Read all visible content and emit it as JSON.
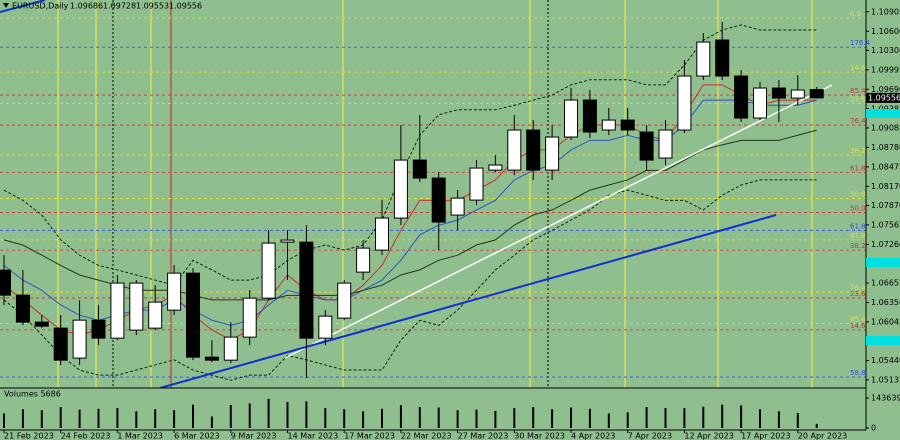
{
  "chart_data": {
    "type": "candlestick",
    "title": "EURUSD,Daily",
    "categories": [
      "21 Feb 2023",
      null,
      null,
      "24 Feb 2023",
      null,
      null,
      "1 Mar 2023",
      null,
      null,
      "6 Mar 2023",
      null,
      null,
      "9 Mar 2023",
      null,
      null,
      "14 Mar 2023",
      null,
      null,
      "17 Mar 2023",
      null,
      null,
      "22 Mar 2023",
      null,
      null,
      "27 Mar 2023",
      null,
      null,
      "30 Mar 2023",
      null,
      null,
      "4 Apr 2023",
      null,
      null,
      "7 Apr 2023",
      null,
      null,
      "12 Apr 2023",
      null,
      null,
      "17 Apr 2023",
      null,
      null,
      "20 Apr 2023",
      null
    ],
    "open": [
      1.06856,
      1.06464,
      1.06041,
      1.05947,
      1.05477,
      1.06072,
      1.0579,
      1.05916,
      1.05947,
      1.06229,
      1.06809,
      1.05492,
      1.05445,
      1.05806,
      1.06417,
      1.07295,
      1.07295,
      1.0579,
      1.06104,
      1.06825,
      1.0717,
      1.07672,
      1.08581,
      1.08299,
      1.07719,
      1.07954,
      1.08424,
      1.08424,
      1.09052,
      1.08424,
      1.08942,
      1.09522,
      1.09052,
      1.09208,
      1.0902,
      1.08613,
      1.09052,
      1.09898,
      1.10463,
      1.09898,
      1.0924,
      1.0971,
      1.09553,
      1.09686
    ],
    "high": [
      1.07092,
      1.06856,
      1.06151,
      1.06151,
      1.06386,
      1.06308,
      1.06778,
      1.067,
      1.06621,
      1.06935,
      1.06888,
      1.05759,
      1.06041,
      1.06543,
      1.07484,
      1.07484,
      1.07562,
      1.06229,
      1.067,
      1.07327,
      1.07954,
      1.0913,
      1.09287,
      1.08393,
      1.08111,
      1.08581,
      1.0866,
      1.09287,
      1.09208,
      1.0913,
      1.0971,
      1.09679,
      1.09397,
      1.09397,
      1.0913,
      1.09208,
      1.10149,
      1.10573,
      1.10745,
      1.09992,
      1.09804,
      1.09836,
      1.09914,
      1.09728
    ],
    "low": [
      1.06308,
      1.05994,
      1.05947,
      1.05367,
      1.05367,
      1.0568,
      1.05759,
      1.05837,
      1.05916,
      1.06151,
      1.05445,
      1.05414,
      1.05398,
      1.0568,
      1.06386,
      1.067,
      1.05163,
      1.0568,
      1.06072,
      1.067,
      1.07092,
      1.07562,
      1.08236,
      1.0717,
      1.07484,
      1.07876,
      1.08393,
      1.08346,
      1.08268,
      1.08268,
      1.08895,
      1.08926,
      1.08973,
      1.08973,
      1.08424,
      1.08503,
      1.09005,
      1.09836,
      1.09836,
      1.09177,
      1.09208,
      1.09177,
      1.09444,
      1.09553
    ],
    "close": [
      1.06464,
      1.06041,
      1.05978,
      1.05445,
      1.06072,
      1.0579,
      1.06653,
      1.06653,
      1.06355,
      1.06809,
      1.05492,
      1.05445,
      1.05806,
      1.06417,
      1.0728,
      1.07327,
      1.0579,
      1.06135,
      1.06653,
      1.07201,
      1.07672,
      1.08581,
      1.08299,
      1.07609,
      1.07985,
      1.08456,
      1.08503,
      1.09052,
      1.08424,
      1.08942,
      1.09522,
      1.0902,
      1.09208,
      1.09052,
      1.08581,
      1.09052,
      1.09898,
      1.10431,
      1.09898,
      1.0924,
      1.0971,
      1.09553,
      1.09679,
      1.09556
    ],
    "up_color": "#ffffff",
    "down_color": "#000000",
    "ylim": [
      1.0504,
      1.1109
    ],
    "yticks": [
      1.10905,
      {
        "value": 1.106,
        "label": "1.10600"
      },
      {
        "value": 1.103,
        "label": "1.10300"
      },
      1.09995,
      {
        "value": 1.0969,
        "label": "1.09690"
      },
      1.09385,
      1.09085,
      {
        "value": 1.0878,
        "label": "1.08780"
      },
      1.08475,
      {
        "value": 1.0817,
        "label": "1.08170"
      },
      {
        "value": 1.0787,
        "label": "1.07870"
      },
      1.07565,
      {
        "value": 1.0726,
        "label": "1.07260"
      },
      1.06655,
      {
        "value": 1.0635,
        "label": "1.06350"
      },
      1.06045,
      {
        "value": 1.0544,
        "label": "1.05440"
      },
      1.05135
    ],
    "overlays": [
      {
        "color": "#c8302a",
        "dashed": false,
        "values": [
          1.0662,
          1.0639,
          1.0615,
          1.0592,
          1.0584,
          1.0592,
          1.0607,
          1.0623,
          1.0631,
          1.0646,
          1.0615,
          1.0592,
          1.0576,
          1.0592,
          1.0639,
          1.0678,
          1.0654,
          1.0639,
          1.0639,
          1.0662,
          1.0693,
          1.0748,
          1.0795,
          1.0795,
          1.0795,
          1.0811,
          1.0827,
          1.0858,
          1.0874,
          1.0874,
          1.0897,
          1.0913,
          1.0913,
          1.0913,
          1.0897,
          1.0889,
          1.0929,
          1.0976,
          1.0976,
          1.096,
          1.0944,
          1.0952,
          1.0952,
          1.0952
        ]
      },
      {
        "color": "#2a55c8",
        "dashed": false,
        "values": [
          1.0693,
          1.067,
          1.0654,
          1.0631,
          1.0615,
          1.0607,
          1.0615,
          1.0623,
          1.0623,
          1.0639,
          1.0623,
          1.0607,
          1.0599,
          1.0607,
          1.0631,
          1.0654,
          1.0646,
          1.0639,
          1.0639,
          1.0654,
          1.067,
          1.0701,
          1.0741,
          1.0756,
          1.0764,
          1.078,
          1.0795,
          1.0827,
          1.0842,
          1.085,
          1.0874,
          1.0889,
          1.0889,
          1.0897,
          1.0889,
          1.0889,
          1.0913,
          1.0952,
          1.0952,
          1.0952,
          1.0944,
          1.0944,
          1.0944,
          1.0952
        ]
      },
      {
        "color": "#1c3a1c",
        "dashed": false,
        "values": [
          1.0733,
          1.0725,
          1.0709,
          1.0693,
          1.0678,
          1.067,
          1.0662,
          1.0654,
          1.0654,
          1.0654,
          1.0646,
          1.0639,
          1.0639,
          1.0639,
          1.0639,
          1.0646,
          1.0646,
          1.0646,
          1.0646,
          1.0654,
          1.0662,
          1.0678,
          1.0686,
          1.0701,
          1.0709,
          1.0725,
          1.0733,
          1.0756,
          1.0772,
          1.078,
          1.0795,
          1.0811,
          1.0819,
          1.0827,
          1.0842,
          1.0842,
          1.0858,
          1.0874,
          1.0882,
          1.0889,
          1.0889,
          1.0889,
          1.0897,
          1.0905
        ]
      },
      {
        "color": "#0a2a0a",
        "dashed": true,
        "values": [
          1.0811,
          1.0795,
          1.0772,
          1.0733,
          1.0709,
          1.0693,
          1.0686,
          1.0678,
          1.067,
          1.0662,
          1.0701,
          1.0686,
          1.067,
          1.067,
          1.0678,
          1.0701,
          1.0717,
          1.0725,
          1.0717,
          1.0725,
          1.0764,
          1.0835,
          1.0897,
          1.0929,
          1.0937,
          1.0937,
          1.0937,
          1.0944,
          1.0952,
          1.096,
          1.0976,
          1.0984,
          1.0984,
          1.0984,
          1.0976,
          1.0976,
          1.1007,
          1.1046,
          1.1062,
          1.107,
          1.1062,
          1.1062,
          1.1062,
          1.1062
        ]
      },
      {
        "color": "#0a2a0a",
        "dashed": true,
        "values": [
          1.0639,
          1.0615,
          1.0584,
          1.0552,
          1.0529,
          1.0521,
          1.0521,
          1.0529,
          1.0537,
          1.0545,
          1.0529,
          1.0521,
          1.0513,
          1.0521,
          1.0521,
          1.0552,
          1.0545,
          1.0537,
          1.0529,
          1.0529,
          1.0529,
          1.0576,
          1.0607,
          1.0599,
          1.0623,
          1.0654,
          1.0686,
          1.0709,
          1.0733,
          1.0748,
          1.0764,
          1.078,
          1.0803,
          1.0811,
          1.0803,
          1.0795,
          1.0795,
          1.078,
          1.0803,
          1.0819,
          1.0827,
          1.0827,
          1.0827,
          1.0827
        ]
      }
    ],
    "levels": [
      {
        "value": 1.1081,
        "label": "0.0",
        "color": "#e0e040"
      },
      {
        "value": 1.1035,
        "label": "176.4",
        "color": "#3050e0"
      },
      {
        "value": 1.0996,
        "label": "14.6",
        "color": "#e0e040"
      },
      {
        "value": 1.096,
        "label": "85.4",
        "color": "#d03030"
      },
      {
        "value": 1.0947,
        "label": "23.6",
        "color": "#e0e040"
      },
      {
        "value": 1.0913,
        "label": "76.4",
        "color": "#d03030"
      },
      {
        "value": 1.0866,
        "label": "38.2",
        "color": "#e0e040"
      },
      {
        "value": 1.0839,
        "label": "61.8",
        "color": "#d03030"
      },
      {
        "value": 1.0798,
        "label": "50.0",
        "color": "#e0e040"
      },
      {
        "value": 1.0776,
        "label": "50.0",
        "color": "#d03030"
      },
      {
        "value": 1.0748,
        "label": "61.8",
        "color": "#3050e0"
      },
      {
        "value": 1.0733,
        "label": "61.8",
        "color": "#e0e040"
      },
      {
        "value": 1.0717,
        "label": "38.2",
        "color": "#d03030"
      },
      {
        "value": 1.0651,
        "label": "76.4",
        "color": "#e0e040"
      },
      {
        "value": 1.0642,
        "label": "23.6",
        "color": "#d03030"
      },
      {
        "value": 1.0602,
        "label": "85.4",
        "color": "#e0e040"
      },
      {
        "value": 1.0592,
        "label": "14.6",
        "color": "#d03030"
      },
      {
        "value": 1.0518,
        "label": "58.8",
        "color": "#3050e0"
      }
    ],
    "volume_label": "Volumes 5686",
    "volumes": [
      70000,
      90000,
      85000,
      100000,
      88000,
      92000,
      96000,
      80000,
      90000,
      85000,
      112000,
      55000,
      110000,
      118000,
      140000,
      125000,
      128000,
      95000,
      90000,
      80000,
      92000,
      110000,
      100000,
      98000,
      85000,
      88000,
      82000,
      95000,
      100000,
      90000,
      98000,
      92000,
      70000,
      75000,
      100000,
      96000,
      95000,
      102000,
      112000,
      108000,
      90000,
      80000,
      72000,
      20000
    ],
    "volume_color": "#000000",
    "vlim": [
      0,
      143639
    ],
    "vticks": [
      143639,
      0
    ]
  }
}
